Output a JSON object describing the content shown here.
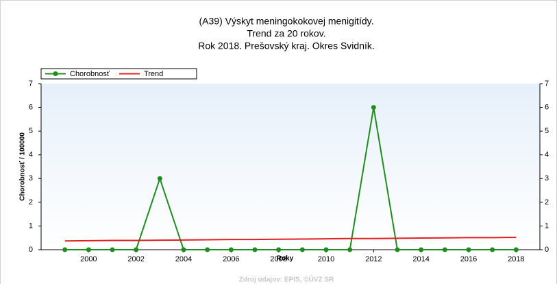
{
  "chart_data": {
    "type": "line",
    "title": [
      "(A39) Výskyt meningokokovej menigitídy.",
      "Trend za 20 rokov.",
      "Rok 2018. Prešovský kraj. Okres Svidník."
    ],
    "x_label": "Roky",
    "y_label": "Chorobnosť / 100000",
    "source": "Zdroj údajov: EPIS, ©ÚVZ SR",
    "x": [
      1999,
      2000,
      2001,
      2002,
      2003,
      2004,
      2005,
      2006,
      2007,
      2008,
      2009,
      2010,
      2011,
      2012,
      2013,
      2014,
      2015,
      2016,
      2017,
      2018
    ],
    "series": [
      {
        "name": "Chorobnosť",
        "color": "#1f8c1f",
        "markers": true,
        "values": [
          0,
          0,
          0,
          0,
          3,
          0,
          0,
          0,
          0,
          0,
          0,
          0,
          0,
          6,
          0,
          0,
          0,
          0,
          0,
          0
        ]
      },
      {
        "name": "Trend",
        "color": "#e02020",
        "markers": false,
        "values": [
          0.37,
          0.38,
          0.39,
          0.39,
          0.4,
          0.41,
          0.42,
          0.43,
          0.43,
          0.44,
          0.45,
          0.46,
          0.47,
          0.47,
          0.48,
          0.49,
          0.5,
          0.51,
          0.51,
          0.52
        ]
      }
    ],
    "xlim": [
      1998,
      2019
    ],
    "xticks": [
      2000,
      2002,
      2004,
      2006,
      2008,
      2010,
      2012,
      2014,
      2016,
      2018
    ],
    "ylim": [
      0,
      7
    ],
    "yticks": [
      0,
      1,
      2,
      3,
      4,
      5,
      6,
      7
    ],
    "legend": "top-left"
  }
}
